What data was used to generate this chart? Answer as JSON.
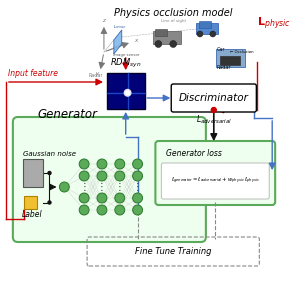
{
  "bg_color": "#ffffff",
  "green_border": "#5aaa5a",
  "green_fill": "#f2fff2",
  "blue_arrow": "#4472c4",
  "red_color": "#cc0000",
  "dark": "#111111",
  "node_fill": "#5aaa5a",
  "node_edge": "#2a7a2a",
  "gray_box": "#aaaaaa",
  "yellow_box": "#f0c030",
  "rdm_bg": "#000088",
  "rdm_line": "#3366ff",
  "truck_color": "#888888",
  "car_color": "#5588cc",
  "physics_title": "Physics occlusion model",
  "input_feature": "Input feature",
  "gaussian_noise": "Gaussian noise",
  "label_text": "Label",
  "generator_text": "Generator",
  "discriminator_text": "Discriminator",
  "l_adversarial": "$L_{adversarial}$",
  "l_physic": "$\\mathbf{L}_{physic}$",
  "generator_loss": "Generator loss",
  "formula": "$\\ell_{generator} = \\ell_{adversarial} + w_{physic}\\,\\ell_{physic}$",
  "fine_tune": "Fine Tune Training"
}
